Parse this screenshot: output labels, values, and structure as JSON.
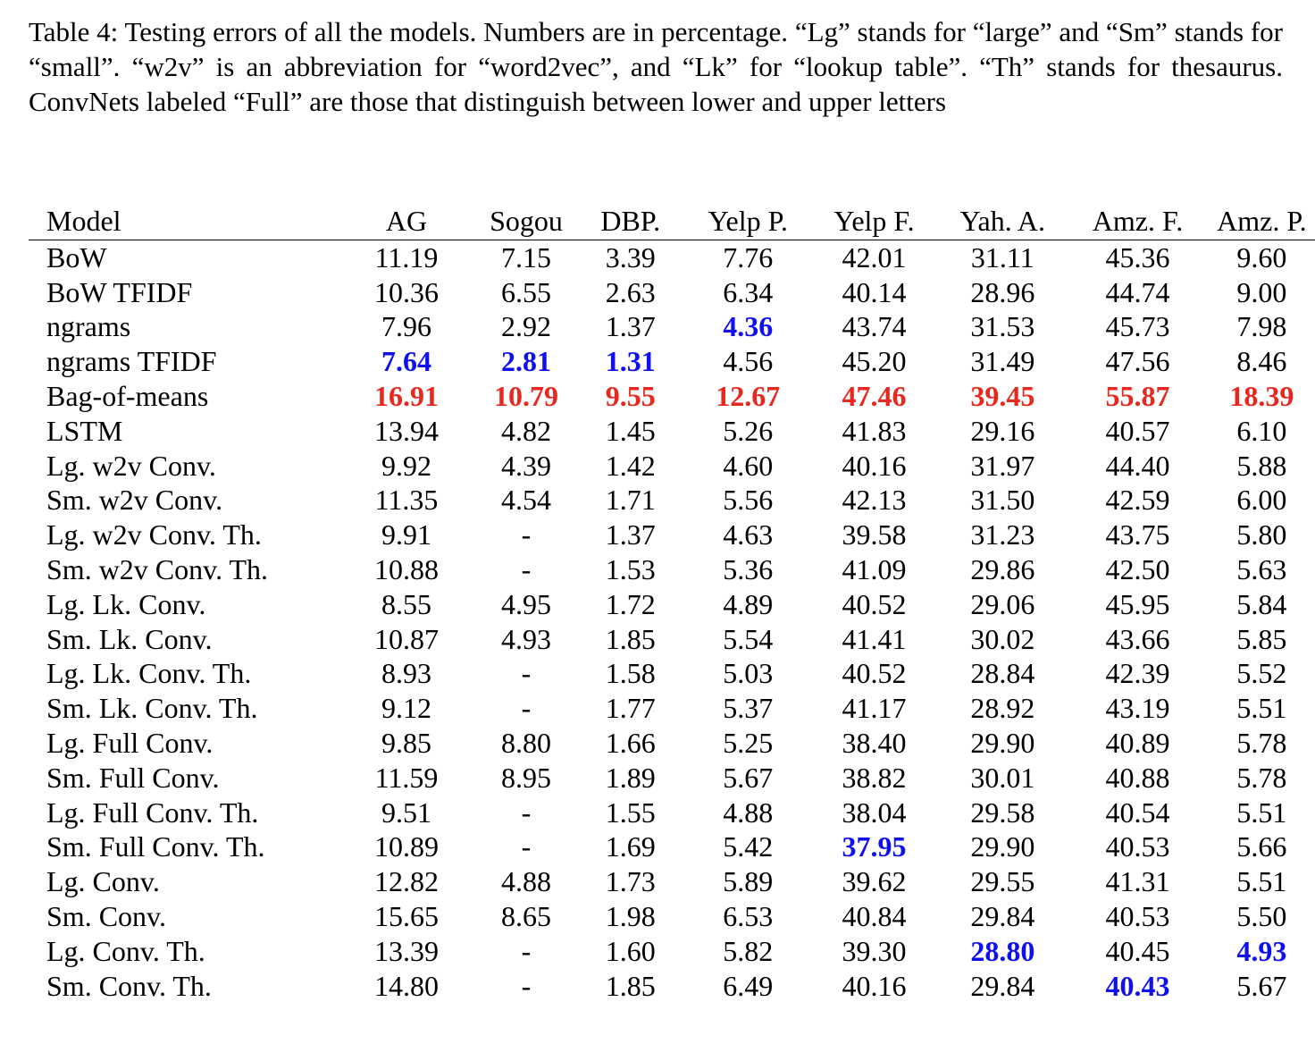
{
  "caption": "Table 4: Testing errors of all the models. Numbers are in percentage. “Lg” stands for “large” and “Sm” stands for “small”. “w2v” is an abbreviation for “word2vec”, and “Lk” for “lookup table”. “Th” stands for thesaurus. ConvNets labeled “Full” are those that distinguish between lower and upper letters",
  "colors": {
    "best": "#1010ee",
    "worst": "#e8281e"
  },
  "columns": [
    "Model",
    "AG",
    "Sogou",
    "DBP.",
    "Yelp P.",
    "Yelp F.",
    "Yah. A.",
    "Amz. F.",
    "Amz. P."
  ],
  "rows": [
    {
      "model": "BoW",
      "values": [
        "11.19",
        "7.15",
        "3.39",
        "7.76",
        "42.01",
        "31.11",
        "45.36",
        "9.60"
      ],
      "style": [
        "",
        "",
        "",
        "",
        "",
        "",
        "",
        ""
      ]
    },
    {
      "model": "BoW TFIDF",
      "values": [
        "10.36",
        "6.55",
        "2.63",
        "6.34",
        "40.14",
        "28.96",
        "44.74",
        "9.00"
      ],
      "style": [
        "",
        "",
        "",
        "",
        "",
        "",
        "",
        ""
      ]
    },
    {
      "model": "ngrams",
      "values": [
        "7.96",
        "2.92",
        "1.37",
        "4.36",
        "43.74",
        "31.53",
        "45.73",
        "7.98"
      ],
      "style": [
        "",
        "",
        "",
        "best",
        "",
        "",
        "",
        ""
      ]
    },
    {
      "model": "ngrams TFIDF",
      "values": [
        "7.64",
        "2.81",
        "1.31",
        "4.56",
        "45.20",
        "31.49",
        "47.56",
        "8.46"
      ],
      "style": [
        "best",
        "best",
        "best",
        "",
        "",
        "",
        "",
        ""
      ]
    },
    {
      "model": "Bag-of-means",
      "values": [
        "16.91",
        "10.79",
        "9.55",
        "12.67",
        "47.46",
        "39.45",
        "55.87",
        "18.39"
      ],
      "style": [
        "worst",
        "worst",
        "worst",
        "worst",
        "worst",
        "worst",
        "worst",
        "worst"
      ]
    },
    {
      "model": "LSTM",
      "values": [
        "13.94",
        "4.82",
        "1.45",
        "5.26",
        "41.83",
        "29.16",
        "40.57",
        "6.10"
      ],
      "style": [
        "",
        "",
        "",
        "",
        "",
        "",
        "",
        ""
      ]
    },
    {
      "model": "Lg. w2v Conv.",
      "values": [
        "9.92",
        "4.39",
        "1.42",
        "4.60",
        "40.16",
        "31.97",
        "44.40",
        "5.88"
      ],
      "style": [
        "",
        "",
        "",
        "",
        "",
        "",
        "",
        ""
      ]
    },
    {
      "model": "Sm. w2v Conv.",
      "values": [
        "11.35",
        "4.54",
        "1.71",
        "5.56",
        "42.13",
        "31.50",
        "42.59",
        "6.00"
      ],
      "style": [
        "",
        "",
        "",
        "",
        "",
        "",
        "",
        ""
      ]
    },
    {
      "model": "Lg. w2v Conv. Th.",
      "values": [
        "9.91",
        "-",
        "1.37",
        "4.63",
        "39.58",
        "31.23",
        "43.75",
        "5.80"
      ],
      "style": [
        "",
        "",
        "",
        "",
        "",
        "",
        "",
        ""
      ]
    },
    {
      "model": "Sm. w2v Conv. Th.",
      "values": [
        "10.88",
        "-",
        "1.53",
        "5.36",
        "41.09",
        "29.86",
        "42.50",
        "5.63"
      ],
      "style": [
        "",
        "",
        "",
        "",
        "",
        "",
        "",
        ""
      ]
    },
    {
      "model": "Lg. Lk. Conv.",
      "values": [
        "8.55",
        "4.95",
        "1.72",
        "4.89",
        "40.52",
        "29.06",
        "45.95",
        "5.84"
      ],
      "style": [
        "",
        "",
        "",
        "",
        "",
        "",
        "",
        ""
      ]
    },
    {
      "model": "Sm. Lk. Conv.",
      "values": [
        "10.87",
        "4.93",
        "1.85",
        "5.54",
        "41.41",
        "30.02",
        "43.66",
        "5.85"
      ],
      "style": [
        "",
        "",
        "",
        "",
        "",
        "",
        "",
        ""
      ]
    },
    {
      "model": "Lg. Lk. Conv. Th.",
      "values": [
        "8.93",
        "-",
        "1.58",
        "5.03",
        "40.52",
        "28.84",
        "42.39",
        "5.52"
      ],
      "style": [
        "",
        "",
        "",
        "",
        "",
        "",
        "",
        ""
      ]
    },
    {
      "model": "Sm. Lk. Conv. Th.",
      "values": [
        "9.12",
        "-",
        "1.77",
        "5.37",
        "41.17",
        "28.92",
        "43.19",
        "5.51"
      ],
      "style": [
        "",
        "",
        "",
        "",
        "",
        "",
        "",
        ""
      ]
    },
    {
      "model": "Lg. Full Conv.",
      "values": [
        "9.85",
        "8.80",
        "1.66",
        "5.25",
        "38.40",
        "29.90",
        "40.89",
        "5.78"
      ],
      "style": [
        "",
        "",
        "",
        "",
        "",
        "",
        "",
        ""
      ]
    },
    {
      "model": "Sm. Full Conv.",
      "values": [
        "11.59",
        "8.95",
        "1.89",
        "5.67",
        "38.82",
        "30.01",
        "40.88",
        "5.78"
      ],
      "style": [
        "",
        "",
        "",
        "",
        "",
        "",
        "",
        ""
      ]
    },
    {
      "model": "Lg. Full Conv. Th.",
      "values": [
        "9.51",
        "-",
        "1.55",
        "4.88",
        "38.04",
        "29.58",
        "40.54",
        "5.51"
      ],
      "style": [
        "",
        "",
        "",
        "",
        "",
        "",
        "",
        ""
      ]
    },
    {
      "model": "Sm. Full Conv. Th.",
      "values": [
        "10.89",
        "-",
        "1.69",
        "5.42",
        "37.95",
        "29.90",
        "40.53",
        "5.66"
      ],
      "style": [
        "",
        "",
        "",
        "",
        "best",
        "",
        "",
        ""
      ]
    },
    {
      "model": "Lg. Conv.",
      "values": [
        "12.82",
        "4.88",
        "1.73",
        "5.89",
        "39.62",
        "29.55",
        "41.31",
        "5.51"
      ],
      "style": [
        "",
        "",
        "",
        "",
        "",
        "",
        "",
        ""
      ]
    },
    {
      "model": "Sm. Conv.",
      "values": [
        "15.65",
        "8.65",
        "1.98",
        "6.53",
        "40.84",
        "29.84",
        "40.53",
        "5.50"
      ],
      "style": [
        "",
        "",
        "",
        "",
        "",
        "",
        "",
        ""
      ]
    },
    {
      "model": "Lg. Conv. Th.",
      "values": [
        "13.39",
        "-",
        "1.60",
        "5.82",
        "39.30",
        "28.80",
        "40.45",
        "4.93"
      ],
      "style": [
        "",
        "",
        "",
        "",
        "",
        "best",
        "",
        "best"
      ]
    },
    {
      "model": "Sm. Conv. Th.",
      "values": [
        "14.80",
        "-",
        "1.85",
        "6.49",
        "40.16",
        "29.84",
        "40.43",
        "5.67"
      ],
      "style": [
        "",
        "",
        "",
        "",
        "",
        "",
        "best",
        ""
      ]
    }
  ]
}
